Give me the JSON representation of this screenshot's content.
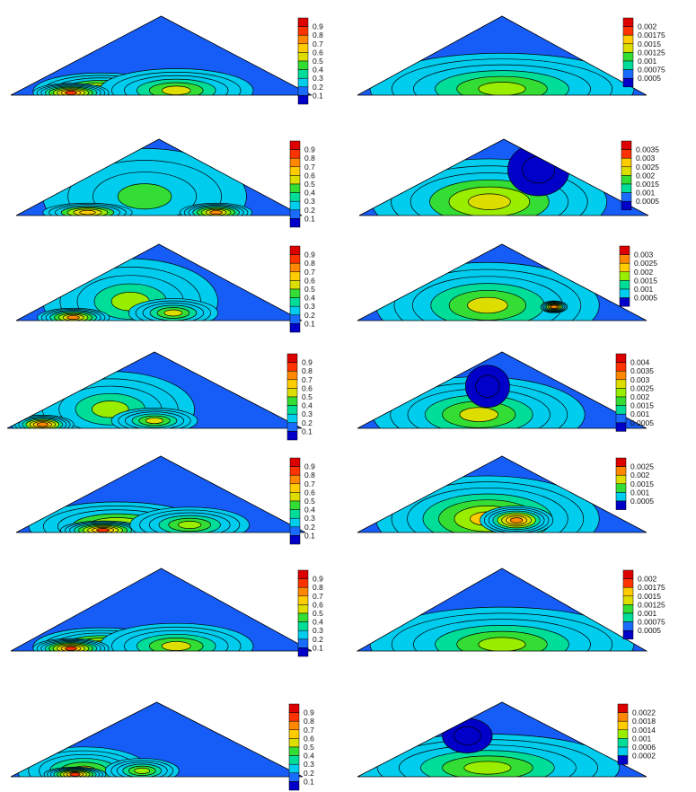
{
  "colors": {
    "scale": [
      "#0000c8",
      "#1a6cff",
      "#00ccee",
      "#00dd99",
      "#33dd33",
      "#99ee00",
      "#dddd00",
      "#ffcc00",
      "#ff8800",
      "#ff3300",
      "#dd0000"
    ],
    "outline": "#000000"
  },
  "chart_data": [
    {
      "type": "contour",
      "panel": "left-1",
      "colorbar": {
        "labels": [
          "0.9",
          "0.8",
          "0.7",
          "0.6",
          "0.5",
          "0.4",
          "0.3",
          "0.2",
          "0.1"
        ],
        "range": [
          0,
          1
        ]
      },
      "hotspots": [
        {
          "x": 0.3,
          "y": 0.05,
          "rx": 0.22,
          "ry": 0.1,
          "level": 0.7
        },
        {
          "x": 0.55,
          "y": 0.06,
          "rx": 0.25,
          "ry": 0.12,
          "level": 0.55
        },
        {
          "x": 0.2,
          "y": 0.03,
          "rx": 0.12,
          "ry": 0.05,
          "level": 0.85
        }
      ]
    },
    {
      "type": "contour",
      "panel": "right-1",
      "colorbar": {
        "labels": [
          "0.002",
          "0.00175",
          "0.0015",
          "0.00125",
          "0.001",
          "0.00075",
          "0.0005"
        ],
        "range": [
          0,
          0.0022
        ]
      },
      "hotspots": [
        {
          "x": 0.25,
          "y": 0.12,
          "rx": 0.16,
          "ry": 0.1,
          "level": 0.95
        },
        {
          "x": 0.55,
          "y": 0.13,
          "rx": 0.2,
          "ry": 0.1,
          "level": 1.0
        },
        {
          "x": 0.5,
          "y": 0.08,
          "rx": 0.45,
          "ry": 0.2,
          "level": 0.5
        }
      ]
    },
    {
      "type": "contour",
      "panel": "left-2",
      "colorbar": {
        "labels": [
          "0.9",
          "0.8",
          "0.7",
          "0.6",
          "0.5",
          "0.4",
          "0.3",
          "0.2",
          "0.1"
        ],
        "range": [
          0,
          1
        ]
      },
      "hotspots": [
        {
          "x": 0.45,
          "y": 0.25,
          "rx": 0.35,
          "ry": 0.28,
          "level": 0.35
        },
        {
          "x": 0.25,
          "y": 0.04,
          "rx": 0.15,
          "ry": 0.05,
          "level": 0.7
        },
        {
          "x": 0.7,
          "y": 0.04,
          "rx": 0.12,
          "ry": 0.05,
          "level": 0.75
        }
      ]
    },
    {
      "type": "contour",
      "panel": "right-2",
      "colorbar": {
        "labels": [
          "0.0035",
          "0.003",
          "0.0025",
          "0.002",
          "0.0015",
          "0.001",
          "0.0005"
        ],
        "range": [
          0,
          0.0038
        ]
      },
      "hotspots": [
        {
          "x": 0.45,
          "y": 0.22,
          "rx": 0.25,
          "ry": 0.18,
          "level": 1.0
        },
        {
          "x": 0.45,
          "y": 0.18,
          "rx": 0.4,
          "ry": 0.25,
          "level": 0.6
        },
        {
          "x": 0.62,
          "y": 0.6,
          "rx": 0.1,
          "ry": 0.15,
          "level": 0.02
        }
      ]
    },
    {
      "type": "contour",
      "panel": "left-3",
      "colorbar": {
        "labels": [
          "0.9",
          "0.8",
          "0.7",
          "0.6",
          "0.5",
          "0.4",
          "0.3",
          "0.2",
          "0.1"
        ],
        "range": [
          0,
          1
        ]
      },
      "hotspots": [
        {
          "x": 0.4,
          "y": 0.25,
          "rx": 0.3,
          "ry": 0.25,
          "level": 0.45
        },
        {
          "x": 0.2,
          "y": 0.04,
          "rx": 0.12,
          "ry": 0.05,
          "level": 0.75
        },
        {
          "x": 0.55,
          "y": 0.1,
          "rx": 0.15,
          "ry": 0.08,
          "level": 0.55
        }
      ]
    },
    {
      "type": "contour",
      "panel": "right-3",
      "colorbar": {
        "labels": [
          "0.003",
          "0.0025",
          "0.002",
          "0.0015",
          "0.001",
          "0.0005"
        ],
        "range": [
          0,
          0.0033
        ]
      },
      "hotspots": [
        {
          "x": 0.4,
          "y": 0.2,
          "rx": 0.18,
          "ry": 0.14,
          "level": 0.95
        },
        {
          "x": 0.45,
          "y": 0.2,
          "rx": 0.38,
          "ry": 0.25,
          "level": 0.55
        },
        {
          "x": 0.68,
          "y": 0.18,
          "rx": 0.04,
          "ry": 0.03,
          "level": 0.8
        }
      ]
    },
    {
      "type": "contour",
      "panel": "left-4",
      "colorbar": {
        "labels": [
          "0.9",
          "0.8",
          "0.7",
          "0.6",
          "0.5",
          "0.4",
          "0.3",
          "0.2",
          "0.1"
        ],
        "range": [
          0,
          1
        ]
      },
      "hotspots": [
        {
          "x": 0.35,
          "y": 0.25,
          "rx": 0.28,
          "ry": 0.22,
          "level": 0.45
        },
        {
          "x": 0.12,
          "y": 0.05,
          "rx": 0.1,
          "ry": 0.05,
          "level": 0.8
        },
        {
          "x": 0.5,
          "y": 0.1,
          "rx": 0.14,
          "ry": 0.07,
          "level": 0.55
        }
      ]
    },
    {
      "type": "contour",
      "panel": "right-4",
      "colorbar": {
        "labels": [
          "0.004",
          "0.0035",
          "0.003",
          "0.0025",
          "0.002",
          "0.0015",
          "0.001",
          "0.0005"
        ],
        "range": [
          0,
          0.0042
        ]
      },
      "hotspots": [
        {
          "x": 0.3,
          "y": 0.18,
          "rx": 0.1,
          "ry": 0.08,
          "level": 0.95
        },
        {
          "x": 0.55,
          "y": 0.15,
          "rx": 0.08,
          "ry": 0.06,
          "level": 0.8
        },
        {
          "x": 0.42,
          "y": 0.18,
          "rx": 0.36,
          "ry": 0.22,
          "level": 0.55
        },
        {
          "x": 0.45,
          "y": 0.55,
          "rx": 0.07,
          "ry": 0.12,
          "level": 0.02
        }
      ]
    },
    {
      "type": "contour",
      "panel": "left-5",
      "colorbar": {
        "labels": [
          "0.9",
          "0.8",
          "0.7",
          "0.6",
          "0.5",
          "0.4",
          "0.3",
          "0.2",
          "0.1"
        ],
        "range": [
          0,
          1
        ]
      },
      "hotspots": [
        {
          "x": 0.35,
          "y": 0.08,
          "rx": 0.3,
          "ry": 0.14,
          "level": 0.6
        },
        {
          "x": 0.3,
          "y": 0.03,
          "rx": 0.14,
          "ry": 0.05,
          "level": 0.85
        },
        {
          "x": 0.6,
          "y": 0.1,
          "rx": 0.2,
          "ry": 0.1,
          "level": 0.5
        }
      ]
    },
    {
      "type": "contour",
      "panel": "right-5",
      "colorbar": {
        "labels": [
          "0.0025",
          "0.002",
          "0.0015",
          "0.001",
          "0.0005"
        ],
        "range": [
          0,
          0.0027
        ]
      },
      "hotspots": [
        {
          "x": 0.32,
          "y": 0.2,
          "rx": 0.12,
          "ry": 0.1,
          "level": 1.0
        },
        {
          "x": 0.45,
          "y": 0.18,
          "rx": 0.38,
          "ry": 0.25,
          "level": 0.65
        },
        {
          "x": 0.55,
          "y": 0.16,
          "rx": 0.12,
          "ry": 0.08,
          "level": 0.8
        }
      ]
    },
    {
      "type": "contour",
      "panel": "left-6",
      "colorbar": {
        "labels": [
          "0.9",
          "0.8",
          "0.7",
          "0.6",
          "0.5",
          "0.4",
          "0.3",
          "0.2",
          "0.1"
        ],
        "range": [
          0,
          1
        ]
      },
      "hotspots": [
        {
          "x": 0.3,
          "y": 0.05,
          "rx": 0.22,
          "ry": 0.1,
          "level": 0.7
        },
        {
          "x": 0.55,
          "y": 0.06,
          "rx": 0.25,
          "ry": 0.12,
          "level": 0.55
        },
        {
          "x": 0.2,
          "y": 0.03,
          "rx": 0.12,
          "ry": 0.05,
          "level": 0.85
        }
      ]
    },
    {
      "type": "contour",
      "panel": "right-6",
      "colorbar": {
        "labels": [
          "0.002",
          "0.00175",
          "0.0015",
          "0.00125",
          "0.001",
          "0.00075",
          "0.0005"
        ],
        "range": [
          0,
          0.0022
        ]
      },
      "hotspots": [
        {
          "x": 0.25,
          "y": 0.12,
          "rx": 0.16,
          "ry": 0.1,
          "level": 0.95
        },
        {
          "x": 0.55,
          "y": 0.13,
          "rx": 0.2,
          "ry": 0.1,
          "level": 1.0
        },
        {
          "x": 0.5,
          "y": 0.08,
          "rx": 0.45,
          "ry": 0.2,
          "level": 0.5
        }
      ]
    },
    {
      "type": "contour",
      "panel": "left-7",
      "colorbar": {
        "labels": [
          "0.9",
          "0.8",
          "0.7",
          "0.6",
          "0.5",
          "0.4",
          "0.3",
          "0.2",
          "0.1"
        ],
        "range": [
          0,
          1
        ]
      },
      "hotspots": [
        {
          "x": 0.25,
          "y": 0.08,
          "rx": 0.22,
          "ry": 0.14,
          "level": 0.55
        },
        {
          "x": 0.22,
          "y": 0.03,
          "rx": 0.1,
          "ry": 0.04,
          "level": 0.85
        },
        {
          "x": 0.45,
          "y": 0.08,
          "rx": 0.12,
          "ry": 0.07,
          "level": 0.5
        }
      ]
    },
    {
      "type": "contour",
      "panel": "right-7",
      "colorbar": {
        "labels": [
          "0.0022",
          "0.0018",
          "0.0014",
          "0.001",
          "0.0006",
          "0.0002"
        ],
        "range": [
          0,
          0.0024
        ]
      },
      "hotspots": [
        {
          "x": 0.2,
          "y": 0.06,
          "rx": 0.08,
          "ry": 0.05,
          "level": 0.95
        },
        {
          "x": 0.4,
          "y": 0.07,
          "rx": 0.1,
          "ry": 0.05,
          "level": 0.95
        },
        {
          "x": 0.65,
          "y": 0.07,
          "rx": 0.14,
          "ry": 0.06,
          "level": 0.85
        },
        {
          "x": 0.45,
          "y": 0.12,
          "rx": 0.45,
          "ry": 0.2,
          "level": 0.5
        },
        {
          "x": 0.38,
          "y": 0.55,
          "rx": 0.08,
          "ry": 0.1,
          "level": 0.02
        }
      ]
    }
  ]
}
